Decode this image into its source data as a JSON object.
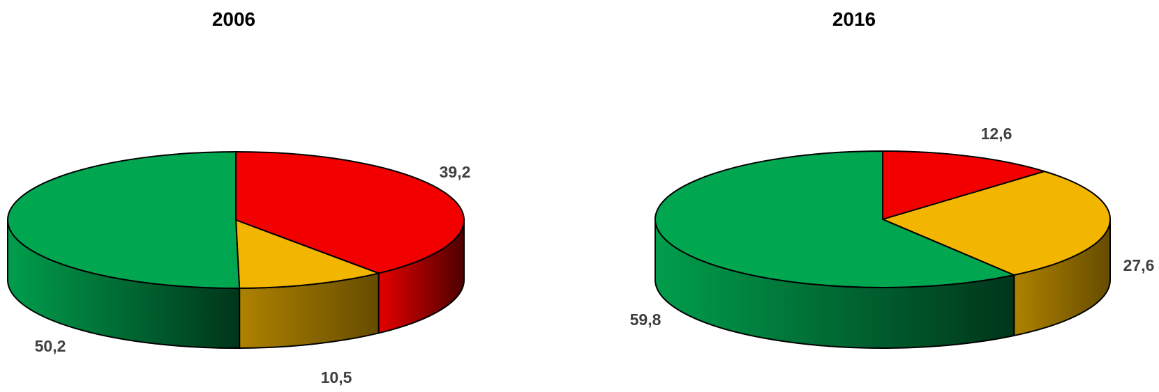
{
  "chart_data": [
    {
      "type": "pie",
      "title": "2006",
      "slices": [
        {
          "value": 39.2,
          "label": "39,2",
          "color": "#f20000",
          "side_color": "#640000"
        },
        {
          "value": 10.5,
          "label": "10,5",
          "color": "#f2b500",
          "side_color": "#a07800"
        },
        {
          "value": 50.2,
          "label": "50,2",
          "color": "#00a650",
          "side_color": "#00a650"
        }
      ]
    },
    {
      "type": "pie",
      "title": "2016",
      "slices": [
        {
          "value": 12.6,
          "label": "12,6",
          "color": "#f20000",
          "side_color": "#640000"
        },
        {
          "value": 27.6,
          "label": "27,6",
          "color": "#f2b500",
          "side_color": "#6b4f00"
        },
        {
          "value": 59.8,
          "label": "59,8",
          "color": "#00a650",
          "side_color": "#00a650"
        }
      ]
    }
  ]
}
